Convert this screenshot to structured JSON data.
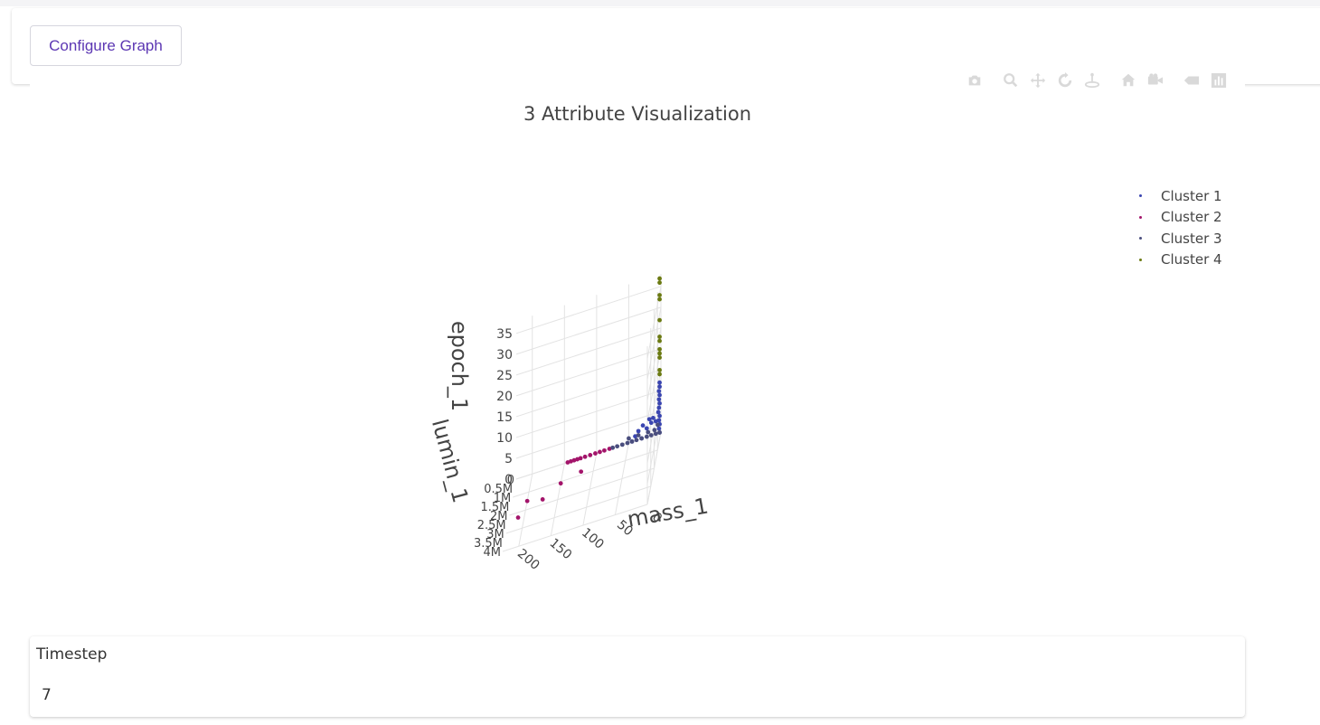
{
  "header": {
    "configure_label": "Configure Graph"
  },
  "modebar": {
    "icons": [
      "camera-icon",
      "zoom-icon",
      "pan-icon",
      "orbit-rotation-icon",
      "turntable-rotation-icon",
      "reset-camera-icon",
      "save-camera-icon",
      "hover-closest-icon",
      "toggle-spike-lines-icon"
    ]
  },
  "chart_data": {
    "type": "scatter3d",
    "title": "3 Attribute Visualization",
    "axes": {
      "x": {
        "label": "mass_1",
        "ticks": [
          "0",
          "50",
          "100",
          "150",
          "200"
        ],
        "range": [
          0,
          225
        ]
      },
      "y": {
        "label": "lumin_1",
        "ticks": [
          "0",
          "0.5M",
          "1M",
          "1.5M",
          "2M",
          "2.5M",
          "3M",
          "3.5M",
          "4M"
        ],
        "range": [
          0,
          4000000
        ]
      },
      "z": {
        "label": "epoch_1",
        "ticks": [
          "0",
          "5",
          "10",
          "15",
          "20",
          "25",
          "30",
          "35"
        ],
        "range": [
          0,
          38
        ]
      }
    },
    "legend_position": "top-right",
    "colors": {
      "cluster1": "#3a45b0",
      "cluster2": "#a3146a",
      "cluster3": "#4a4e7e",
      "cluster4": "#6b7a12"
    },
    "series": [
      {
        "name": "Cluster 1",
        "color": "#3a45b0",
        "points": [
          [
            2,
            0,
            0
          ],
          [
            3,
            0,
            1
          ],
          [
            2,
            0,
            2
          ],
          [
            3,
            0,
            3
          ],
          [
            2,
            0,
            4
          ],
          [
            4,
            0,
            5
          ],
          [
            3,
            0,
            6
          ],
          [
            2,
            0,
            7
          ],
          [
            3,
            0,
            8
          ],
          [
            2,
            0,
            9
          ],
          [
            3,
            0,
            10
          ],
          [
            2,
            0,
            11
          ],
          [
            2,
            0,
            12
          ],
          [
            8,
            0,
            3
          ],
          [
            12,
            0,
            4
          ],
          [
            15,
            0,
            3
          ],
          [
            18,
            0,
            4
          ],
          [
            22,
            0,
            2
          ],
          [
            28,
            0,
            3
          ],
          [
            35,
            0,
            2
          ],
          [
            40,
            0,
            1
          ],
          [
            30,
            0,
            0
          ],
          [
            45,
            0,
            0
          ]
        ]
      },
      {
        "name": "Cluster 2",
        "color": "#a3146a",
        "points": [
          [
            80,
            0,
            0
          ],
          [
            88,
            0,
            0
          ],
          [
            95,
            0,
            0
          ],
          [
            102,
            0,
            0
          ],
          [
            110,
            0,
            0
          ],
          [
            118,
            0,
            0
          ],
          [
            125,
            0,
            0
          ],
          [
            130,
            0,
            0
          ],
          [
            135,
            0,
            0
          ],
          [
            140,
            0,
            0
          ],
          [
            145,
            0,
            0
          ],
          [
            120,
            800000,
            0
          ],
          [
            150,
            1100000,
            0
          ],
          [
            175,
            1700000,
            0
          ],
          [
            210,
            2300000,
            0
          ],
          [
            200,
            1500000,
            0
          ]
        ]
      },
      {
        "name": "Cluster 3",
        "color": "#4a4e7e",
        "points": [
          [
            2,
            0,
            0
          ],
          [
            8,
            0,
            0
          ],
          [
            15,
            0,
            0
          ],
          [
            22,
            0,
            0
          ],
          [
            30,
            0,
            0
          ],
          [
            38,
            0,
            0
          ],
          [
            45,
            0,
            0
          ],
          [
            52,
            0,
            0
          ],
          [
            60,
            0,
            0
          ],
          [
            68,
            0,
            0
          ],
          [
            75,
            0,
            0
          ],
          [
            10,
            0,
            1
          ],
          [
            20,
            0,
            1
          ],
          [
            35,
            0,
            1
          ],
          [
            50,
            0,
            1
          ],
          [
            5,
            0,
            2
          ]
        ]
      },
      {
        "name": "Cluster 4",
        "color": "#6b7a12",
        "points": [
          [
            2,
            0,
            14
          ],
          [
            2,
            0,
            15
          ],
          [
            2,
            0,
            18
          ],
          [
            2,
            0,
            19
          ],
          [
            2,
            0,
            20
          ],
          [
            2,
            0,
            22
          ],
          [
            2,
            0,
            23
          ],
          [
            2,
            0,
            27
          ],
          [
            2,
            0,
            32
          ],
          [
            2,
            0,
            33
          ],
          [
            2,
            0,
            36
          ],
          [
            2,
            0,
            37
          ]
        ]
      }
    ]
  },
  "timestep": {
    "label": "Timestep",
    "value": "7"
  }
}
